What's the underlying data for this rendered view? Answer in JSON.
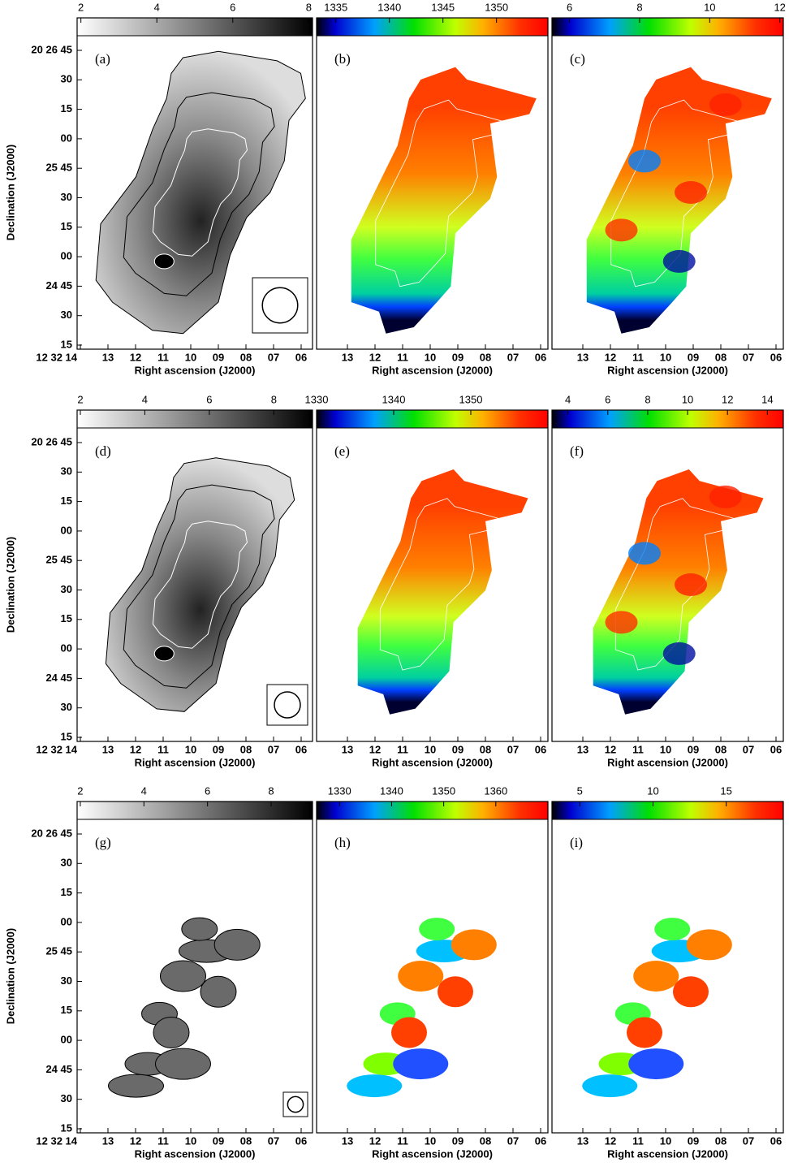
{
  "figure": {
    "y_axis_label": "Declination (J2000)",
    "x_axis_label": "Right ascension (J2000)",
    "dec_ticks": [
      "20 26 45",
      "30",
      "15",
      "00",
      "25 45",
      "30",
      "15",
      "00",
      "24 45",
      "30",
      "15"
    ],
    "ra_ticks": [
      "12 32 14",
      "13",
      "12",
      "11",
      "10",
      "09",
      "08",
      "07",
      "06"
    ],
    "panels": [
      {
        "label": "(a)",
        "colormap": "gray",
        "colorbar": {
          "lim": [
            1.9,
            8.1
          ],
          "ticks": [
            2,
            4,
            6,
            8
          ]
        }
      },
      {
        "label": "(b)",
        "colormap": "rainbow",
        "colorbar": {
          "lim": [
            1333.2,
            1354.8
          ],
          "ticks": [
            1335,
            1340,
            1345,
            1350
          ]
        }
      },
      {
        "label": "(c)",
        "colormap": "rainbow",
        "colorbar": {
          "lim": [
            5.5,
            12.1
          ],
          "ticks": [
            6,
            8,
            10,
            12
          ]
        }
      },
      {
        "label": "(d)",
        "colormap": "gray",
        "colorbar": {
          "lim": [
            1.9,
            9.2
          ],
          "ticks": [
            2,
            4,
            6,
            8
          ]
        }
      },
      {
        "label": "(e)",
        "colormap": "rainbow",
        "colorbar": {
          "lim": [
            1330,
            1360
          ],
          "ticks": [
            1330,
            1340,
            1350
          ]
        }
      },
      {
        "label": "(f)",
        "colormap": "rainbow",
        "colorbar": {
          "lim": [
            3.2,
            14.8
          ],
          "ticks": [
            4,
            6,
            8,
            10,
            12,
            14
          ]
        }
      },
      {
        "label": "(g)",
        "colormap": "gray",
        "colorbar": {
          "lim": [
            1.9,
            9.3
          ],
          "ticks": [
            2,
            4,
            6,
            8
          ]
        }
      },
      {
        "label": "(h)",
        "colormap": "rainbow",
        "colorbar": {
          "lim": [
            1325.6,
            1370
          ],
          "ticks": [
            1330,
            1340,
            1350,
            1360
          ]
        }
      },
      {
        "label": "(i)",
        "colormap": "rainbow",
        "colorbar": {
          "lim": [
            3.1,
            18.9
          ],
          "ticks": [
            5,
            10,
            15
          ]
        }
      }
    ]
  }
}
